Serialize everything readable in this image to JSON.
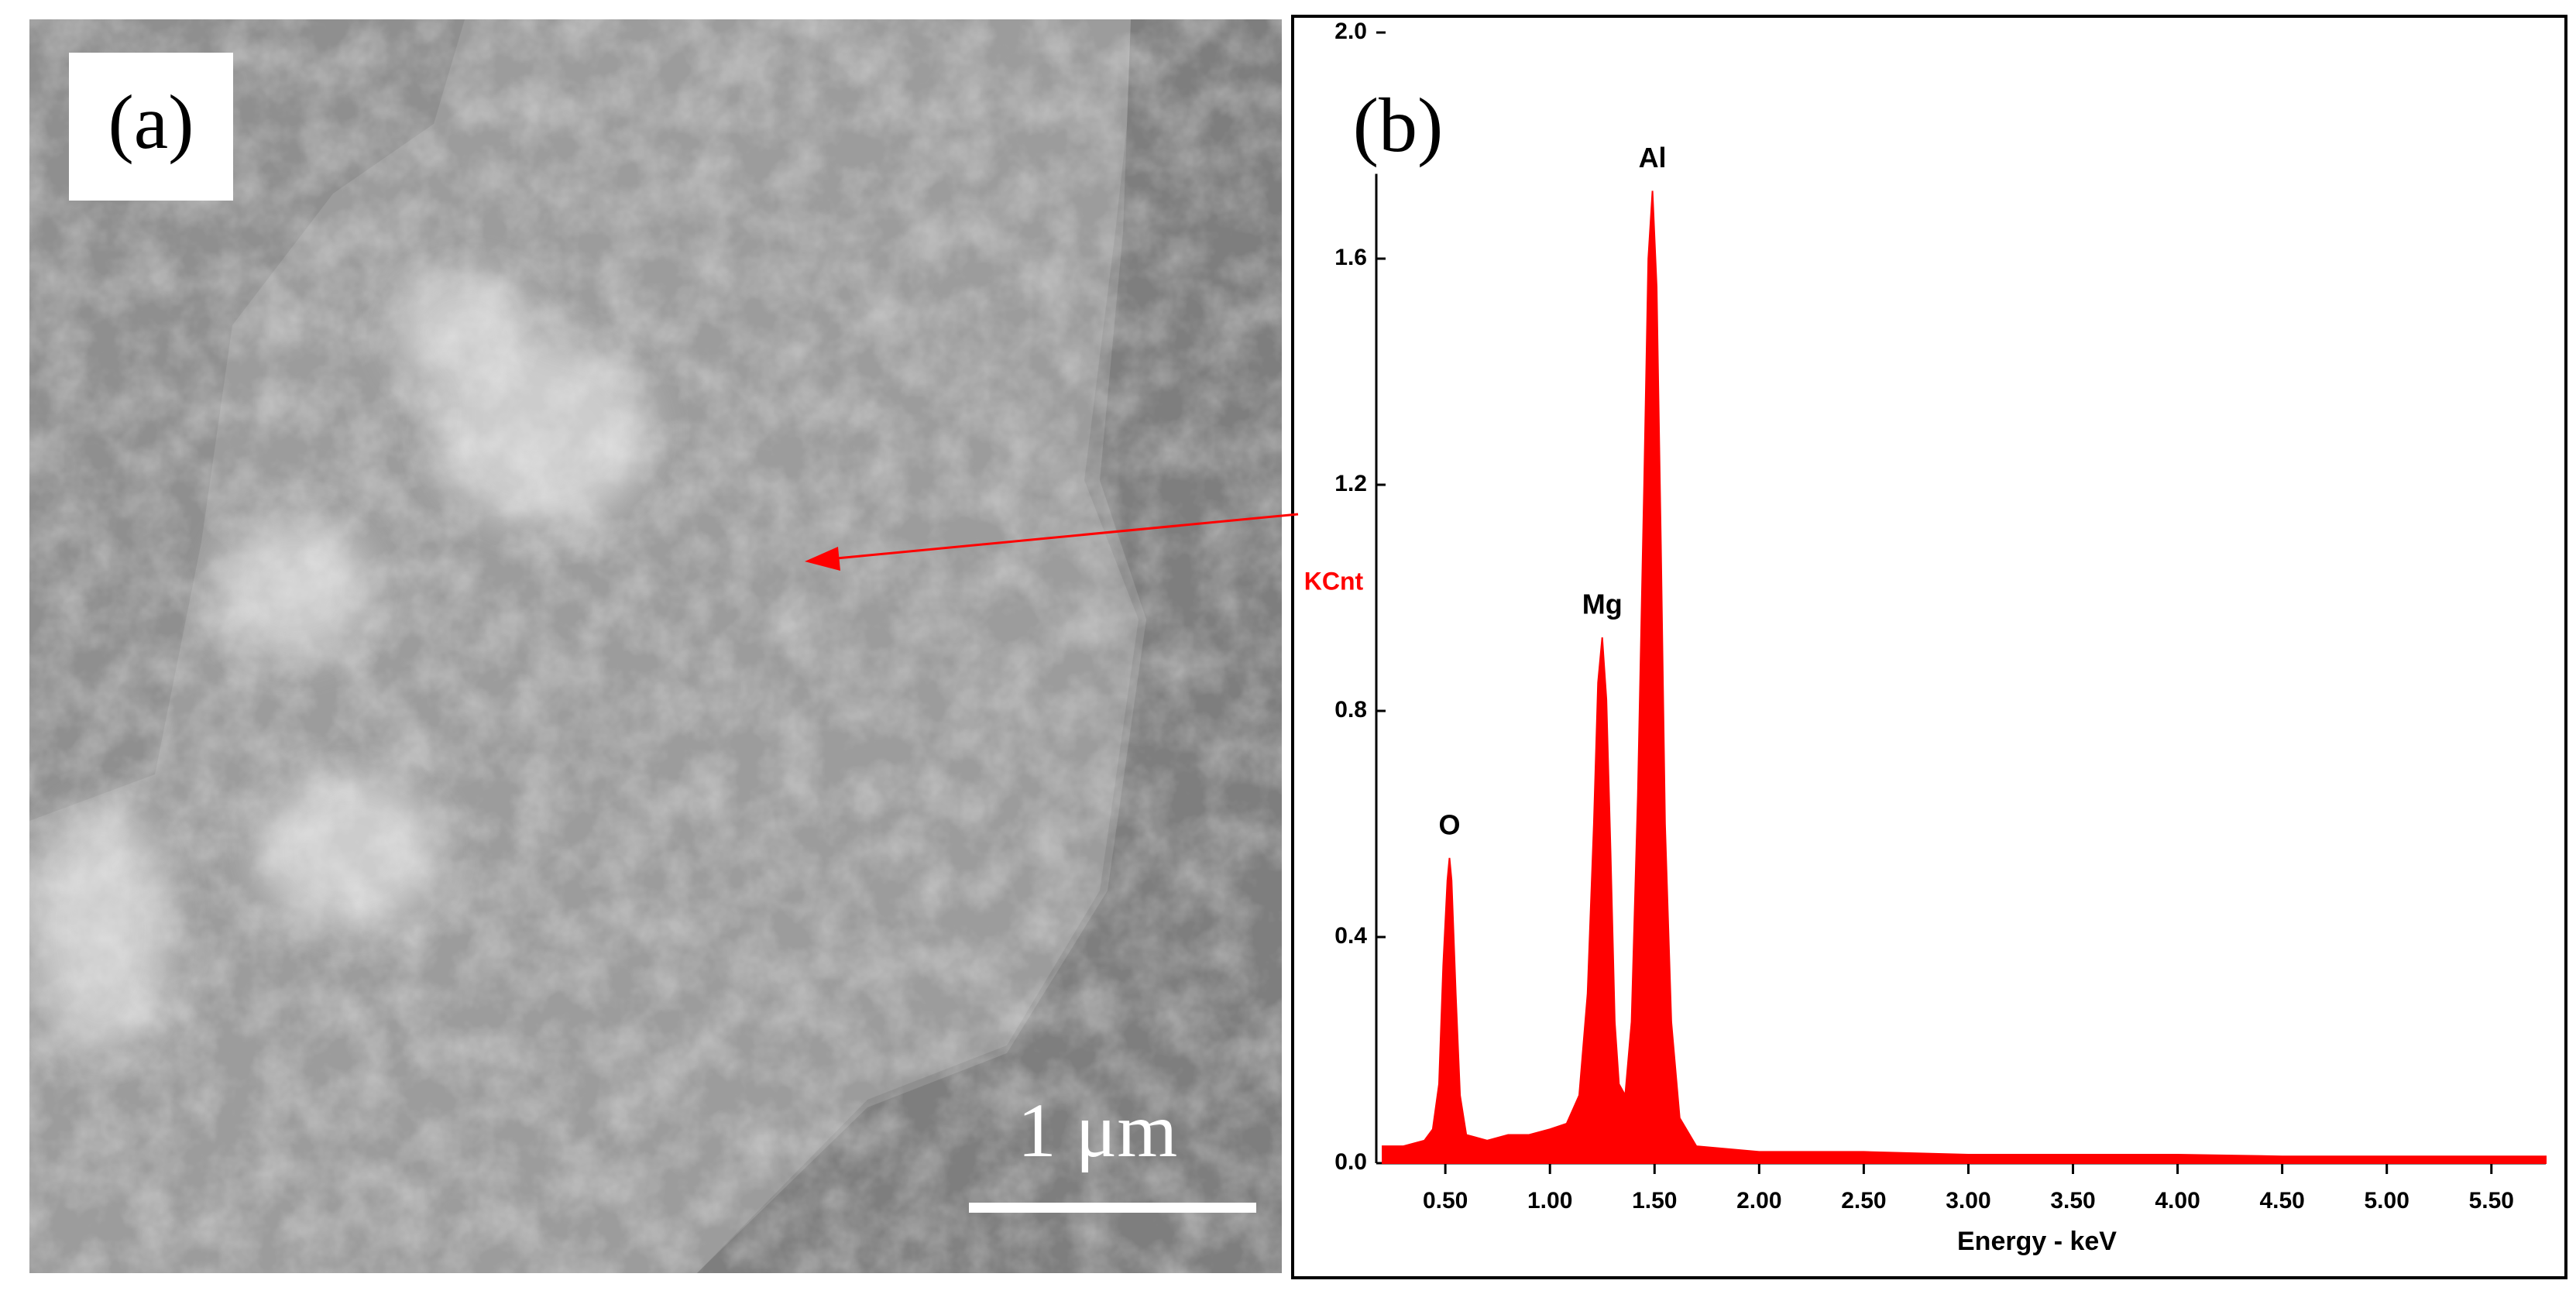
{
  "figure": {
    "panel_a_label": "(a)",
    "scale_bar_label": "1 μm"
  },
  "chart_data": {
    "type": "area",
    "panel_label": "(b)",
    "color": "#ff0000",
    "x_label": "Energy - keV",
    "y_label": "KCnt",
    "xlim": [
      0.17,
      5.76
    ],
    "ylim": [
      0,
      2.0
    ],
    "xticks": [
      {
        "value": 0.5,
        "label": "0.50"
      },
      {
        "value": 1.0,
        "label": "1.00"
      },
      {
        "value": 1.5,
        "label": "1.50"
      },
      {
        "value": 2.0,
        "label": "2.00"
      },
      {
        "value": 2.5,
        "label": "2.50"
      },
      {
        "value": 3.0,
        "label": "3.00"
      },
      {
        "value": 3.5,
        "label": "3.50"
      },
      {
        "value": 4.0,
        "label": "4.00"
      },
      {
        "value": 4.5,
        "label": "4.50"
      },
      {
        "value": 5.0,
        "label": "5.00"
      },
      {
        "value": 5.5,
        "label": "5.50"
      }
    ],
    "yticks": [
      {
        "value": 0,
        "label": "0.0"
      },
      0.4,
      0.8,
      1.2,
      1.6,
      {
        "value": 2,
        "label": "2.0"
      }
    ],
    "annotations": [
      {
        "text": "O",
        "x": 0.52,
        "y": 0.54
      },
      {
        "text": "Mg",
        "x": 1.25,
        "y": 0.93
      },
      {
        "text": "Al",
        "x": 1.49,
        "y": 1.72
      }
    ],
    "x": [
      0.2,
      0.3,
      0.4,
      0.44,
      0.47,
      0.49,
      0.51,
      0.52,
      0.53,
      0.55,
      0.57,
      0.6,
      0.7,
      0.8,
      0.9,
      1.0,
      1.08,
      1.14,
      1.18,
      1.21,
      1.23,
      1.25,
      1.27,
      1.29,
      1.31,
      1.33,
      1.36,
      1.39,
      1.42,
      1.45,
      1.47,
      1.49,
      1.51,
      1.53,
      1.55,
      1.58,
      1.62,
      1.7,
      2.0,
      2.5,
      3.0,
      3.5,
      4.0,
      4.5,
      5.0,
      5.5,
      5.76
    ],
    "values": [
      0.03,
      0.03,
      0.04,
      0.06,
      0.14,
      0.35,
      0.5,
      0.54,
      0.5,
      0.3,
      0.12,
      0.05,
      0.04,
      0.05,
      0.05,
      0.06,
      0.07,
      0.12,
      0.3,
      0.6,
      0.85,
      0.93,
      0.82,
      0.55,
      0.25,
      0.14,
      0.12,
      0.25,
      0.65,
      1.2,
      1.6,
      1.72,
      1.55,
      1.1,
      0.6,
      0.25,
      0.08,
      0.03,
      0.02,
      0.02,
      0.015,
      0.015,
      0.015,
      0.012,
      0.012,
      0.012,
      0.012
    ]
  }
}
